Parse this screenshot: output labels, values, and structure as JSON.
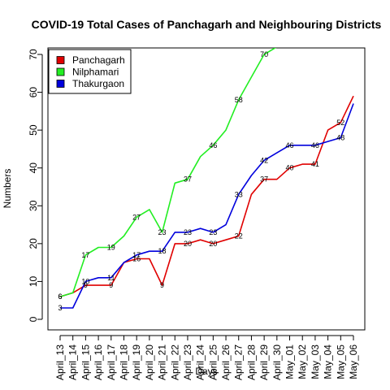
{
  "chart_data": {
    "type": "line",
    "title": "COVID-19 Total Cases of Panchagarh and Neighbouring Districts",
    "xlabel": "Days",
    "ylabel": "Numbers",
    "ylim": [
      0,
      72
    ],
    "yticks": [
      0,
      10,
      20,
      30,
      40,
      50,
      60,
      70
    ],
    "grid": false,
    "legend_position": "top-left",
    "categories": [
      "April_13",
      "April_14",
      "April_15",
      "April_16",
      "April_17",
      "April_18",
      "April_19",
      "April_20",
      "April_21",
      "April_22",
      "April_23",
      "April_24",
      "April_25",
      "April_26",
      "April_27",
      "April_28",
      "April_29",
      "April_30",
      "May_01",
      "May_02",
      "May_03",
      "May_04",
      "May_05",
      "May_06"
    ],
    "series": [
      {
        "name": "Panchagarh",
        "color": "#e00000",
        "values": [
          6,
          7,
          9,
          9,
          9,
          15,
          16,
          16,
          9,
          20,
          20,
          21,
          20,
          21,
          22,
          33,
          37,
          37,
          40,
          41,
          41,
          50,
          52,
          59
        ],
        "labeled_points": [
          {
            "index": 0,
            "text": "6"
          },
          {
            "index": 2,
            "text": "9"
          },
          {
            "index": 4,
            "text": "9"
          },
          {
            "index": 6,
            "text": "16"
          },
          {
            "index": 8,
            "text": "9"
          },
          {
            "index": 10,
            "text": "20"
          },
          {
            "index": 12,
            "text": "20"
          },
          {
            "index": 14,
            "text": "22"
          },
          {
            "index": 16,
            "text": "37"
          },
          {
            "index": 18,
            "text": "40"
          },
          {
            "index": 20,
            "text": "41"
          },
          {
            "index": 22,
            "text": "52"
          }
        ]
      },
      {
        "name": "Nilphamari",
        "color": "#22ee22",
        "values": [
          6,
          7,
          17,
          19,
          19,
          22,
          27,
          29,
          23,
          36,
          37,
          43,
          46,
          50,
          58,
          64,
          70,
          72,
          72,
          72,
          72,
          72,
          72,
          72
        ],
        "labeled_points": [
          {
            "index": 0,
            "text": "6"
          },
          {
            "index": 2,
            "text": "17"
          },
          {
            "index": 4,
            "text": "19"
          },
          {
            "index": 6,
            "text": "27"
          },
          {
            "index": 8,
            "text": "23"
          },
          {
            "index": 10,
            "text": "37"
          },
          {
            "index": 12,
            "text": "46"
          },
          {
            "index": 14,
            "text": "58"
          },
          {
            "index": 16,
            "text": "70"
          }
        ]
      },
      {
        "name": "Thakurgaon",
        "color": "#0000dd",
        "values": [
          3,
          3,
          10,
          11,
          11,
          15,
          17,
          18,
          18,
          23,
          23,
          24,
          23,
          25,
          33,
          38,
          42,
          44,
          46,
          46,
          46,
          47,
          48,
          57
        ],
        "labeled_points": [
          {
            "index": 0,
            "text": "3"
          },
          {
            "index": 2,
            "text": "10"
          },
          {
            "index": 4,
            "text": "11"
          },
          {
            "index": 6,
            "text": "17"
          },
          {
            "index": 8,
            "text": "18"
          },
          {
            "index": 10,
            "text": "23"
          },
          {
            "index": 12,
            "text": "23"
          },
          {
            "index": 14,
            "text": "33"
          },
          {
            "index": 16,
            "text": "42"
          },
          {
            "index": 18,
            "text": "46"
          },
          {
            "index": 20,
            "text": "46"
          },
          {
            "index": 22,
            "text": "48"
          }
        ]
      }
    ]
  }
}
